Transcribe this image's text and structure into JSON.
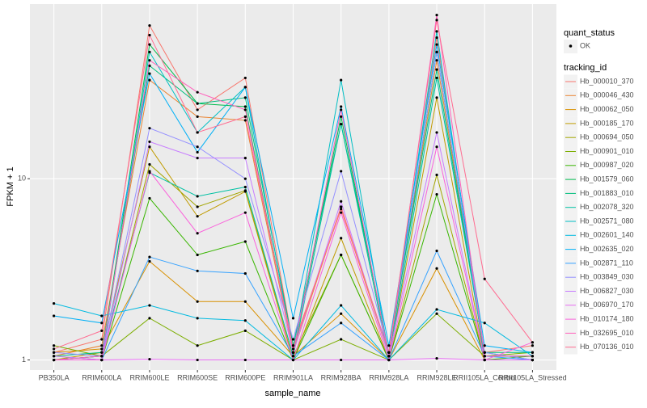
{
  "chart_data": {
    "type": "line",
    "log_y": true,
    "grid": true,
    "legend": "right",
    "x_label": "sample_name",
    "y_label": "FPKM + 1",
    "categories": [
      "PB350LA",
      "RRIM600LA",
      "RRIM600LE",
      "RRIM600SE",
      "RRIM600PE",
      "RRIM901LA",
      "RRIM928BA",
      "RRIM928LA",
      "RRIM928LE",
      "RRII105LA_Control",
      "RRII105LA_Stressed"
    ],
    "ylim": [
      0.88,
      92
    ],
    "yticks": [
      1,
      10
    ],
    "shape_legend_title": "quant_status",
    "shape_legend_items": [
      "OK"
    ],
    "color_legend_title": "tracking_id",
    "series": [
      {
        "name": "Hb_000010_370",
        "color": "#F8766D",
        "values": [
          1.1,
          1.3,
          70,
          24,
          36,
          1.2,
          6.8,
          1.1,
          60,
          1.1,
          1.2
        ]
      },
      {
        "name": "Hb_000046_430",
        "color": "#EA8331",
        "values": [
          1.05,
          1.2,
          35,
          22,
          21,
          1.1,
          7,
          1.05,
          45,
          1.05,
          1.05
        ]
      },
      {
        "name": "Hb_000062_050",
        "color": "#D89000",
        "values": [
          1.1,
          1.15,
          3.5,
          2.1,
          2.1,
          1.05,
          1.8,
          1.0,
          3.2,
          1.0,
          1.0
        ]
      },
      {
        "name": "Hb_000185_170",
        "color": "#C09B00",
        "values": [
          1.0,
          1.1,
          15,
          6.2,
          8.5,
          1.0,
          4.7,
          1.0,
          28,
          1.0,
          1.0
        ]
      },
      {
        "name": "Hb_000694_050",
        "color": "#A3A500",
        "values": [
          1.05,
          1.0,
          12,
          7,
          8.6,
          1.05,
          3.8,
          1.0,
          10.5,
          1.0,
          1.0
        ]
      },
      {
        "name": "Hb_000901_010",
        "color": "#7CAE00",
        "values": [
          1.2,
          1.05,
          1.7,
          1.2,
          1.45,
          1.0,
          1.3,
          1.0,
          1.8,
          1.05,
          1.1
        ]
      },
      {
        "name": "Hb_000987_020",
        "color": "#39B600",
        "values": [
          1.0,
          1.0,
          7.8,
          3.8,
          4.5,
          1.0,
          3.8,
          1.0,
          8.2,
          1.0,
          1.05
        ]
      },
      {
        "name": "Hb_001579_060",
        "color": "#00BB4E",
        "values": [
          1.0,
          1.05,
          55,
          26,
          25,
          1.1,
          22,
          1.05,
          50,
          1.05,
          1.05
        ]
      },
      {
        "name": "Hb_001883_010",
        "color": "#00BF7D",
        "values": [
          1.05,
          1.1,
          42,
          26,
          28,
          1.2,
          20,
          1.1,
          40,
          1.1,
          1.1
        ]
      },
      {
        "name": "Hb_002078_320",
        "color": "#00C1A3",
        "values": [
          1.0,
          1.05,
          10.8,
          8,
          9,
          1.05,
          20,
          1.0,
          36,
          1.1,
          1.0
        ]
      },
      {
        "name": "Hb_002571_080",
        "color": "#00BFC4",
        "values": [
          1.0,
          1.0,
          50,
          18,
          32,
          1.1,
          35,
          1.05,
          65,
          1.0,
          1.0
        ]
      },
      {
        "name": "Hb_002601_140",
        "color": "#00BAE0",
        "values": [
          2.05,
          1.75,
          2.0,
          1.7,
          1.65,
          1.0,
          2.0,
          1.0,
          1.9,
          1.6,
          1.05
        ]
      },
      {
        "name": "Hb_002635_020",
        "color": "#00B0F6",
        "values": [
          1.75,
          1.6,
          38,
          14,
          32,
          1.7,
          25,
          1.2,
          55,
          1.2,
          1.1
        ]
      },
      {
        "name": "Hb_002871_110",
        "color": "#35A2FF",
        "values": [
          1.0,
          1.0,
          3.7,
          3.1,
          3.0,
          1.05,
          1.6,
          1.0,
          4.0,
          1.05,
          1.0
        ]
      },
      {
        "name": "Hb_003849_030",
        "color": "#9590FF",
        "values": [
          1.1,
          1.05,
          19,
          15,
          10,
          1.3,
          11,
          1.1,
          50,
          1.1,
          1.0
        ]
      },
      {
        "name": "Hb_006827_030",
        "color": "#C77CFF",
        "values": [
          1.05,
          1.0,
          16,
          13,
          13,
          1.1,
          7.5,
          1.05,
          18,
          1.0,
          1.0
        ]
      },
      {
        "name": "Hb_006970_170",
        "color": "#E76BF3",
        "values": [
          1.0,
          1.0,
          1.01,
          1.0,
          1.0,
          1.0,
          1.0,
          1.0,
          1.02,
          1.0,
          1.0
        ]
      },
      {
        "name": "Hb_010174_180",
        "color": "#FA62DB",
        "values": [
          1.0,
          1.0,
          11,
          5,
          6.5,
          1.0,
          6.5,
          1.0,
          15,
          1.0,
          1.25
        ]
      },
      {
        "name": "Hb_032695_010",
        "color": "#FF62BC",
        "values": [
          1.0,
          1.05,
          45,
          30,
          24,
          1.1,
          24,
          1.05,
          80,
          1.05,
          1.05
        ]
      },
      {
        "name": "Hb_070136_010",
        "color": "#FF6C91",
        "values": [
          1.15,
          1.45,
          62,
          18,
          22,
          1.15,
          7,
          1.1,
          75,
          2.8,
          1.25
        ]
      }
    ]
  }
}
